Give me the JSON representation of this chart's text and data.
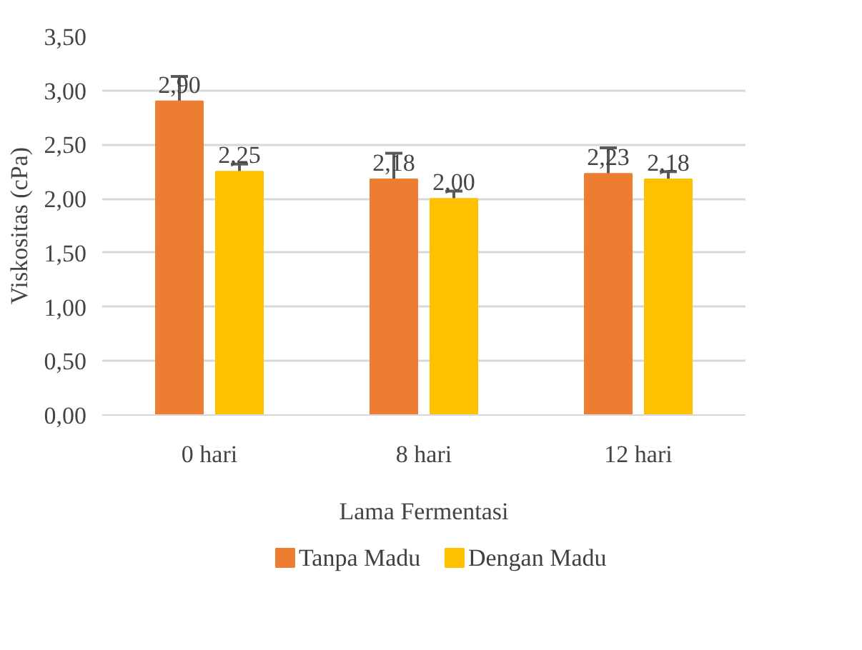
{
  "chart_data": {
    "type": "bar",
    "xlabel": "Lama Fermentasi",
    "ylabel": "Viskositas (cPa)",
    "categories": [
      "0 hari",
      "8 hari",
      "12 hari"
    ],
    "series": [
      {
        "name": "Tanpa Madu",
        "color": "#ed7d31",
        "values": [
          2.9,
          2.18,
          2.23
        ],
        "errors": [
          0.23,
          0.24,
          0.24
        ],
        "value_labels": [
          "2,90",
          "2,18",
          "2,23"
        ]
      },
      {
        "name": "Dengan Madu",
        "color": "#ffc000",
        "values": [
          2.25,
          2.0,
          2.18
        ],
        "errors": [
          0.07,
          0.07,
          0.07
        ],
        "value_labels": [
          "2,25",
          "2,00",
          "2,18"
        ]
      }
    ],
    "ylim": [
      0,
      3.5
    ],
    "yticks": [
      {
        "value": 0,
        "label": "0,00"
      },
      {
        "value": 0.5,
        "label": "0,50"
      },
      {
        "value": 1,
        "label": "1,00"
      },
      {
        "value": 1.5,
        "label": "1,50"
      },
      {
        "value": 2,
        "label": "2,00"
      },
      {
        "value": 2.5,
        "label": "2,50"
      },
      {
        "value": 3,
        "label": "3,00"
      },
      {
        "value": 3.5,
        "label": "3,50"
      }
    ],
    "grid": "y",
    "legend": "bottom"
  }
}
